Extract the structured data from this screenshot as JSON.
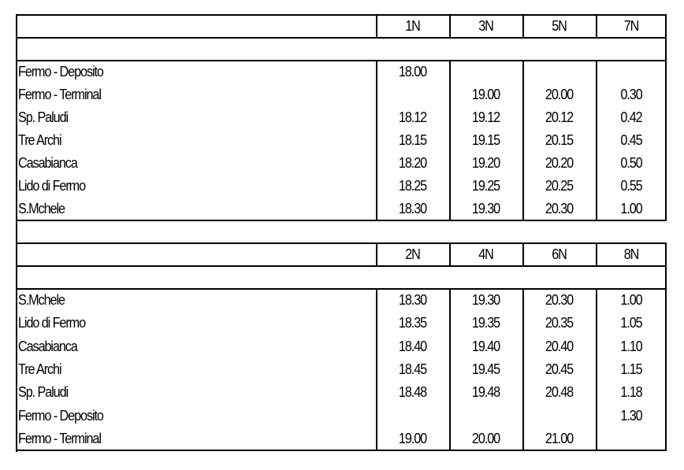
{
  "sections": [
    {
      "columns": [
        "1N",
        "3N",
        "5N",
        "7N"
      ],
      "rows": [
        {
          "stop": "Fermo - Deposito",
          "times": [
            "18.00",
            "",
            "",
            ""
          ]
        },
        {
          "stop": "Fermo - Terminal",
          "times": [
            "",
            "19.00",
            "20.00",
            "0.30"
          ]
        },
        {
          "stop": "Sp. Paludi",
          "times": [
            "18.12",
            "19.12",
            "20.12",
            "0.42"
          ]
        },
        {
          "stop": "Tre Archi",
          "times": [
            "18.15",
            "19.15",
            "20.15",
            "0.45"
          ]
        },
        {
          "stop": "Casabianca",
          "times": [
            "18.20",
            "19.20",
            "20.20",
            "0.50"
          ]
        },
        {
          "stop": "Lido di Fermo",
          "times": [
            "18.25",
            "19.25",
            "20.25",
            "0.55"
          ]
        },
        {
          "stop": "S.Mchele",
          "times": [
            "18.30",
            "19.30",
            "20.30",
            "1.00"
          ]
        }
      ]
    },
    {
      "columns": [
        "2N",
        "4N",
        "6N",
        "8N"
      ],
      "rows": [
        {
          "stop": "S.Mchele",
          "times": [
            "18.30",
            "19.30",
            "20.30",
            "1.00"
          ]
        },
        {
          "stop": "Lido di Fermo",
          "times": [
            "18.35",
            "19.35",
            "20.35",
            "1.05"
          ]
        },
        {
          "stop": "Casabianca",
          "times": [
            "18.40",
            "19.40",
            "20.40",
            "1.10"
          ]
        },
        {
          "stop": "Tre Archi",
          "times": [
            "18.45",
            "19.45",
            "20.45",
            "1.15"
          ]
        },
        {
          "stop": "Sp. Paludi",
          "times": [
            "18.48",
            "19.48",
            "20.48",
            "1.18"
          ]
        },
        {
          "stop": "Fermo - Deposito",
          "times": [
            "",
            "",
            "",
            "1.30"
          ]
        },
        {
          "stop": "Fermo - Terminal",
          "times": [
            "19.00",
            "20.00",
            "21.00",
            ""
          ]
        }
      ]
    }
  ]
}
